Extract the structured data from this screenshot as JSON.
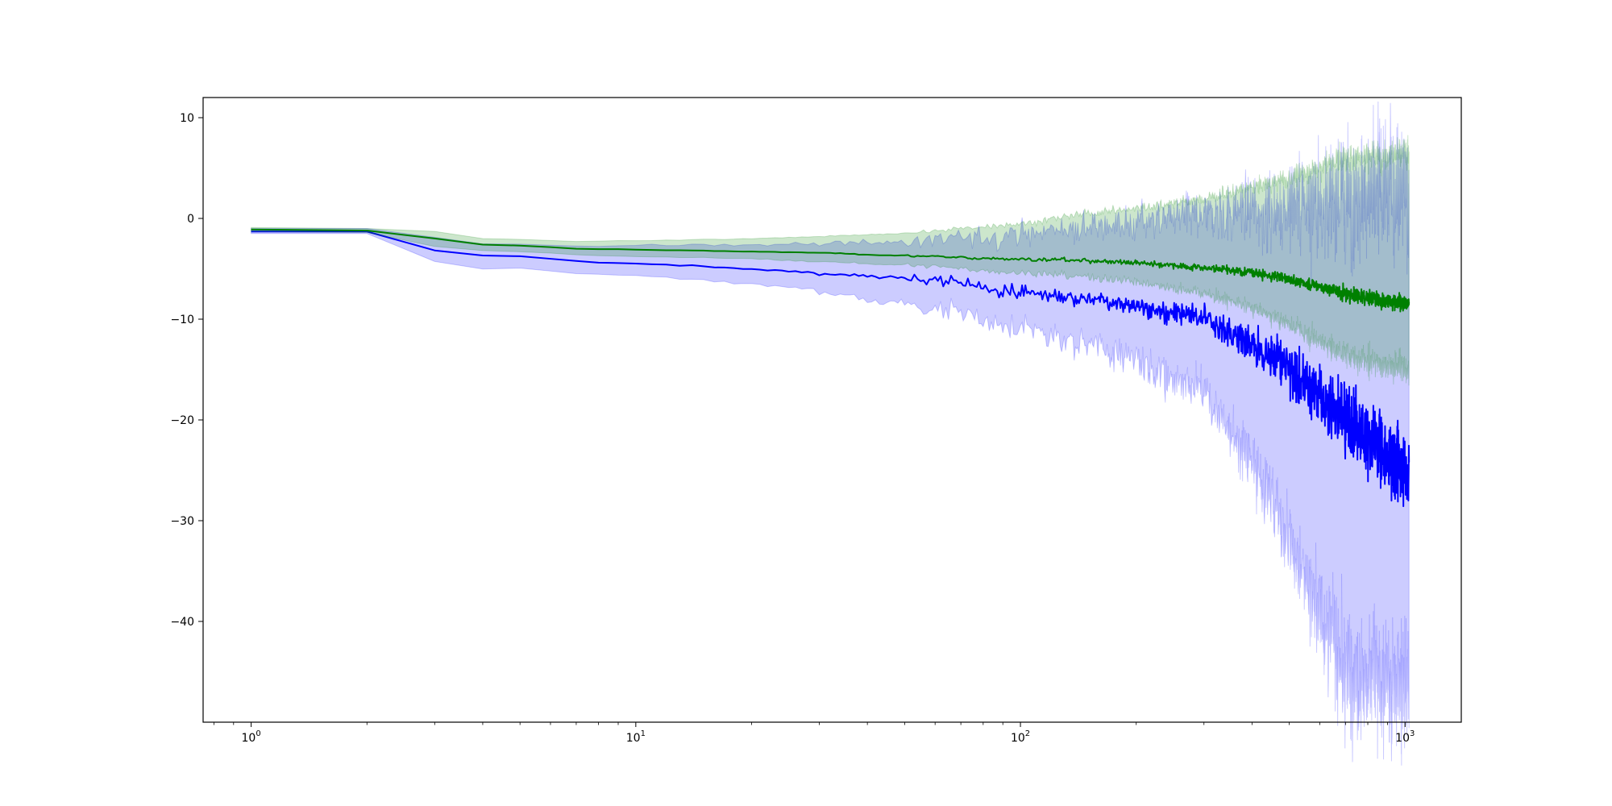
{
  "chart_data": {
    "type": "line",
    "xscale": "log",
    "xlim": [
      0.75,
      1400
    ],
    "ylim": [
      -50,
      12
    ],
    "grid": false,
    "legend": "none",
    "xticks": [
      {
        "value": 1,
        "base": "10",
        "exp": "0"
      },
      {
        "value": 10,
        "base": "10",
        "exp": "1"
      },
      {
        "value": 100,
        "base": "10",
        "exp": "2"
      },
      {
        "value": 1000,
        "base": "10",
        "exp": "3"
      }
    ],
    "yticks": [
      {
        "value": 10,
        "label": "10"
      },
      {
        "value": 0,
        "label": "0"
      },
      {
        "value": -10,
        "label": "−10"
      },
      {
        "value": -20,
        "label": "−20"
      },
      {
        "value": -30,
        "label": "−30"
      },
      {
        "value": -40,
        "label": "−40"
      }
    ],
    "series": [
      {
        "color": "#0000ff",
        "band_color": "#0000ff",
        "band_opacity": 0.2,
        "x": [
          1,
          2,
          3,
          4,
          5,
          7,
          10,
          15,
          20,
          30,
          40,
          50,
          70,
          100,
          150,
          200,
          300,
          400,
          500,
          700,
          1000
        ],
        "mean": [
          -1.3,
          -1.3,
          -3.2,
          -3.7,
          -3.8,
          -4.2,
          -4.5,
          -4.8,
          -5.0,
          -5.5,
          -5.7,
          -5.9,
          -6.4,
          -7.3,
          -7.9,
          -8.5,
          -10.0,
          -12.5,
          -15.0,
          -20.0,
          -25.0
        ],
        "lower": [
          -1.5,
          -1.5,
          -4.3,
          -5.0,
          -5.0,
          -5.4,
          -5.7,
          -6.1,
          -6.5,
          -7.3,
          -8.0,
          -8.5,
          -9.5,
          -10.8,
          -12.5,
          -14.0,
          -17.5,
          -24.0,
          -32.0,
          -45.0,
          -46.0
        ],
        "upper": [
          -1.0,
          -1.0,
          -1.9,
          -2.5,
          -2.6,
          -2.7,
          -2.7,
          -2.7,
          -2.6,
          -2.5,
          -2.4,
          -2.3,
          -2.0,
          -1.6,
          -0.8,
          -0.4,
          0.2,
          0.7,
          1.0,
          2.0,
          2.8
        ],
        "noise": 0.12
      },
      {
        "color": "#008000",
        "band_color": "#008000",
        "band_opacity": 0.2,
        "x": [
          1,
          2,
          3,
          4,
          5,
          7,
          10,
          15,
          20,
          30,
          40,
          50,
          70,
          100,
          150,
          200,
          300,
          400,
          500,
          700,
          1000
        ],
        "mean": [
          -1.1,
          -1.2,
          -2.0,
          -2.6,
          -2.7,
          -3.0,
          -3.1,
          -3.2,
          -3.3,
          -3.4,
          -3.6,
          -3.7,
          -3.9,
          -4.0,
          -4.2,
          -4.4,
          -4.9,
          -5.4,
          -6.0,
          -7.5,
          -8.5
        ],
        "lower": [
          -1.3,
          -1.4,
          -2.8,
          -3.2,
          -3.3,
          -3.6,
          -3.8,
          -3.9,
          -4.0,
          -4.3,
          -4.5,
          -4.6,
          -5.0,
          -5.4,
          -5.8,
          -6.3,
          -7.5,
          -8.8,
          -10.5,
          -13.5,
          -15.0
        ],
        "upper": [
          -0.9,
          -1.0,
          -1.3,
          -2.0,
          -2.1,
          -2.3,
          -2.2,
          -2.1,
          -2.0,
          -1.8,
          -1.6,
          -1.5,
          -1.0,
          -0.5,
          0.5,
          1.0,
          2.0,
          3.0,
          4.0,
          6.0,
          6.5
        ],
        "noise": 0.06
      }
    ]
  }
}
